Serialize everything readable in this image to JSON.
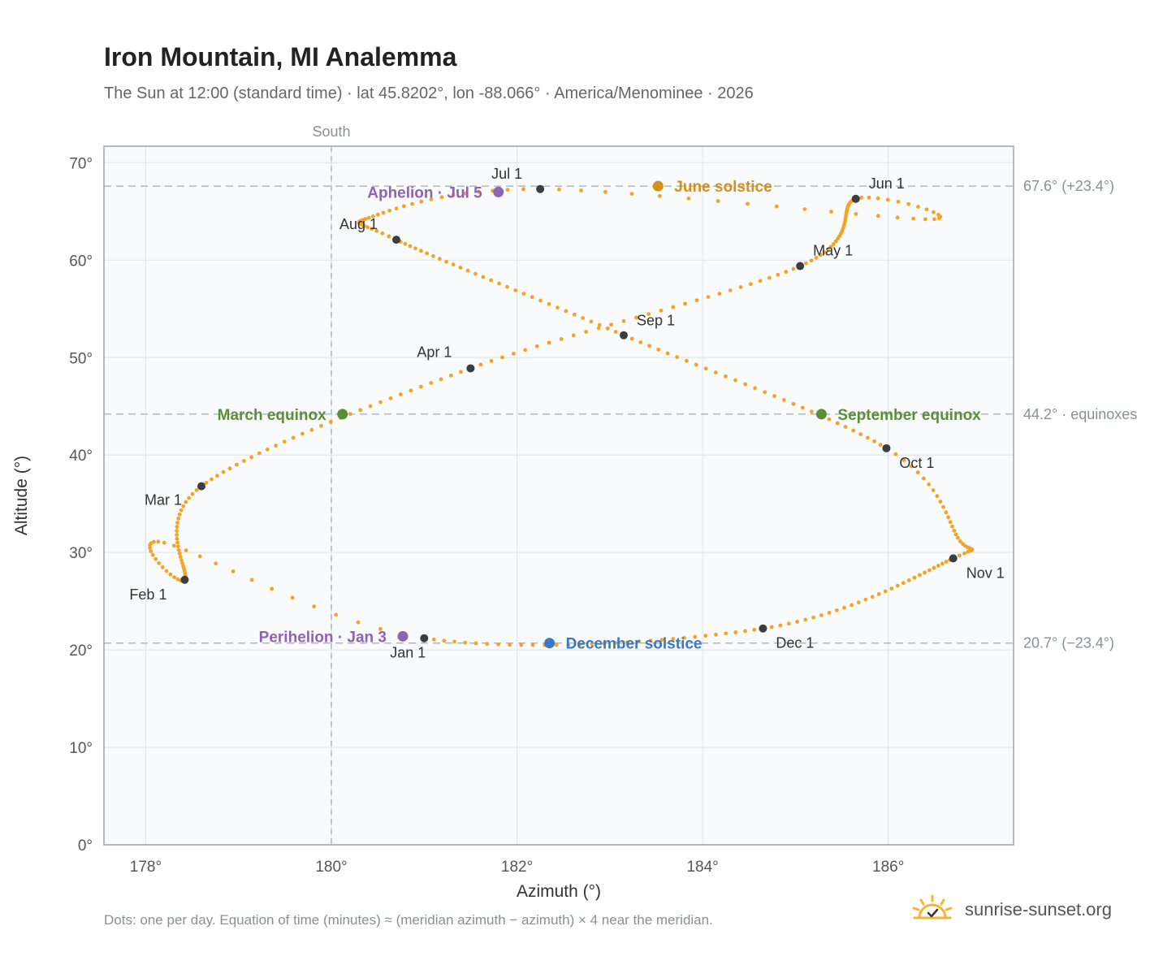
{
  "header": {
    "title": "Iron Mountain, MI Analemma",
    "subtitle": "The Sun at 12:00 (standard time) · lat 45.8202°, lon -88.066° · America/Menominee · 2026"
  },
  "footer": {
    "note": "Dots: one per day. Equation of time (minutes) ≈ (meridian azimuth − azimuth) × 4 near the meridian.",
    "brand": "sunrise-sunset.org"
  },
  "colors": {
    "curve": "#f2a427",
    "month_dot": "#3a3d42",
    "june": "#d4901a",
    "equinox": "#5a8f3a",
    "december": "#3a78c2",
    "apsis": "#8e62b5",
    "plot_bg": "#f8fafc",
    "grid": "#e3e7ec",
    "ref_line": "#a9b4bd",
    "brand_icon": "#f2b630"
  },
  "chart_data": {
    "type": "scatter",
    "xlabel": "Azimuth (°)",
    "ylabel": "Altitude (°)",
    "xlim": [
      177.55,
      187.35
    ],
    "ylim": [
      0,
      71.7
    ],
    "x_ticks": [
      178,
      180,
      182,
      184,
      186
    ],
    "x_tick_labels": [
      "178°",
      "180°",
      "182°",
      "184°",
      "186°"
    ],
    "y_ticks": [
      0,
      10,
      20,
      30,
      40,
      50,
      60,
      70
    ],
    "y_tick_labels": [
      "0°",
      "10°",
      "20°",
      "30°",
      "40°",
      "50°",
      "60°",
      "70°"
    ],
    "grid": true,
    "meridian": {
      "azimuth": 180,
      "label": "South"
    },
    "reference_lines": [
      {
        "altitude": 67.6,
        "label": "67.6° (+23.4°)"
      },
      {
        "altitude": 44.2,
        "label": "44.2° · equinoxes"
      },
      {
        "altitude": 20.7,
        "label": "20.7° (−23.4°)"
      }
    ],
    "month_points": [
      {
        "label": "Jan 1",
        "az": 181.0,
        "alt": 21.2
      },
      {
        "label": "Feb 1",
        "az": 178.42,
        "alt": 27.2
      },
      {
        "label": "Mar 1",
        "az": 178.6,
        "alt": 36.8
      },
      {
        "label": "Apr 1",
        "az": 181.5,
        "alt": 48.9
      },
      {
        "label": "May 1",
        "az": 185.05,
        "alt": 59.4
      },
      {
        "label": "Jun 1",
        "az": 185.65,
        "alt": 66.3
      },
      {
        "label": "Jul 1",
        "az": 182.25,
        "alt": 67.3
      },
      {
        "label": "Aug 1",
        "az": 180.7,
        "alt": 62.1
      },
      {
        "label": "Sep 1",
        "az": 183.15,
        "alt": 52.3
      },
      {
        "label": "Oct 1",
        "az": 185.98,
        "alt": 40.7
      },
      {
        "label": "Nov 1",
        "az": 186.7,
        "alt": 29.4
      },
      {
        "label": "Dec 1",
        "az": 184.65,
        "alt": 22.2
      }
    ],
    "events": [
      {
        "label": "June solstice",
        "az": 183.52,
        "alt": 67.6,
        "color_key": "june"
      },
      {
        "label": "March equinox",
        "az": 180.12,
        "alt": 44.2,
        "color_key": "equinox"
      },
      {
        "label": "September equinox",
        "az": 185.28,
        "alt": 44.2,
        "color_key": "equinox"
      },
      {
        "label": "December solstice",
        "az": 182.35,
        "alt": 20.7,
        "color_key": "december"
      },
      {
        "label": "Aphelion · Jul 5",
        "az": 181.8,
        "alt": 67.0,
        "color_key": "apsis"
      },
      {
        "label": "Perihelion · Jan 3",
        "az": 180.77,
        "alt": 21.4,
        "color_key": "apsis"
      }
    ]
  }
}
